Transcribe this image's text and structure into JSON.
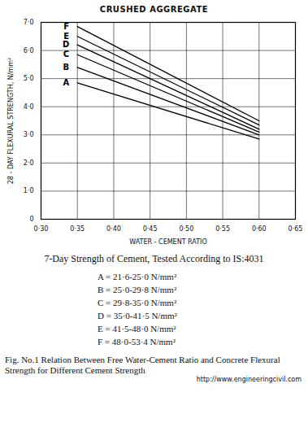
{
  "chart_data": {
    "type": "line",
    "title": "CRUSHED AGGREGATE",
    "x_label": "WATER - CEMENT RATIO",
    "y_label": "28 - DAY FLEXURAL STRENGTH, N/mm²",
    "x": [
      0.35,
      0.6
    ],
    "xlim": [
      0.3,
      0.65
    ],
    "ylim": [
      0,
      7
    ],
    "xticks": [
      {
        "value": 0.3,
        "label": "0·30"
      },
      {
        "value": 0.35,
        "label": "0·35"
      },
      {
        "value": 0.4,
        "label": "0·40"
      },
      {
        "value": 0.45,
        "label": "0·45"
      },
      {
        "value": 0.5,
        "label": "0·50"
      },
      {
        "value": 0.55,
        "label": "0·55"
      },
      {
        "value": 0.6,
        "label": "0·60"
      },
      {
        "value": 0.65,
        "label": "0·65"
      }
    ],
    "yticks": [
      0,
      {
        "value": 1,
        "label": "1·0"
      },
      {
        "value": 2,
        "label": "2·0"
      },
      {
        "value": 3,
        "label": "3·0"
      },
      {
        "value": 4,
        "label": "4·0"
      },
      {
        "value": 5,
        "label": "5·0"
      },
      {
        "value": 6,
        "label": "6·0"
      },
      {
        "value": 7,
        "label": "7·0"
      }
    ],
    "grid": true,
    "legend_title": "7-Day Strength of Cement, Tested According to IS:4031",
    "series": [
      {
        "name": "A",
        "color": "#000000",
        "values": [
          4.85,
          2.85
        ],
        "description": "A = 21·6-25·0 N/mm²"
      },
      {
        "name": "B",
        "color": "#000000",
        "values": [
          5.4,
          3.0
        ],
        "description": "B = 25·0-29·8 N/mm²"
      },
      {
        "name": "C",
        "color": "#000000",
        "values": [
          5.85,
          3.1
        ],
        "description": "C = 29·8-35·0 N/mm²"
      },
      {
        "name": "D",
        "color": "#000000",
        "values": [
          6.2,
          3.2
        ],
        "description": "D = 35·0-41·5 N/mm²"
      },
      {
        "name": "E",
        "color": "#000000",
        "values": [
          6.5,
          3.35
        ],
        "description": "E = 41·5-48·0 N/mm²"
      },
      {
        "name": "F",
        "color": "#000000",
        "values": [
          6.85,
          3.5
        ],
        "description": "F = 48·0-53·4 N/mm²"
      }
    ],
    "caption": "Fig. No.1 Relation Between Free Water-Cement Ratio and Concrete Flexural Strength for Different Cement Strength",
    "source": "http://www.engineeringcivil.com"
  }
}
